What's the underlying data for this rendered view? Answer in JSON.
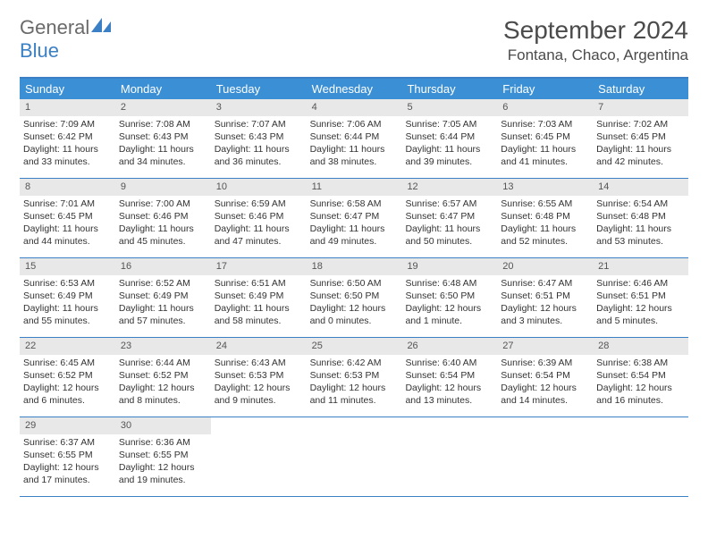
{
  "logo": {
    "textGray": "General",
    "textBlue": "Blue"
  },
  "title": "September 2024",
  "location": "Fontana, Chaco, Argentina",
  "colors": {
    "header_bar": "#3b8fd4",
    "rule": "#3b7fc4",
    "daynum_bg": "#e8e8e8",
    "text": "#333333",
    "logo_gray": "#6a6a6a",
    "logo_blue": "#3b7fc4"
  },
  "day_names": [
    "Sunday",
    "Monday",
    "Tuesday",
    "Wednesday",
    "Thursday",
    "Friday",
    "Saturday"
  ],
  "weeks": [
    [
      {
        "n": "1",
        "sr": "Sunrise: 7:09 AM",
        "ss": "Sunset: 6:42 PM",
        "dl1": "Daylight: 11 hours",
        "dl2": "and 33 minutes."
      },
      {
        "n": "2",
        "sr": "Sunrise: 7:08 AM",
        "ss": "Sunset: 6:43 PM",
        "dl1": "Daylight: 11 hours",
        "dl2": "and 34 minutes."
      },
      {
        "n": "3",
        "sr": "Sunrise: 7:07 AM",
        "ss": "Sunset: 6:43 PM",
        "dl1": "Daylight: 11 hours",
        "dl2": "and 36 minutes."
      },
      {
        "n": "4",
        "sr": "Sunrise: 7:06 AM",
        "ss": "Sunset: 6:44 PM",
        "dl1": "Daylight: 11 hours",
        "dl2": "and 38 minutes."
      },
      {
        "n": "5",
        "sr": "Sunrise: 7:05 AM",
        "ss": "Sunset: 6:44 PM",
        "dl1": "Daylight: 11 hours",
        "dl2": "and 39 minutes."
      },
      {
        "n": "6",
        "sr": "Sunrise: 7:03 AM",
        "ss": "Sunset: 6:45 PM",
        "dl1": "Daylight: 11 hours",
        "dl2": "and 41 minutes."
      },
      {
        "n": "7",
        "sr": "Sunrise: 7:02 AM",
        "ss": "Sunset: 6:45 PM",
        "dl1": "Daylight: 11 hours",
        "dl2": "and 42 minutes."
      }
    ],
    [
      {
        "n": "8",
        "sr": "Sunrise: 7:01 AM",
        "ss": "Sunset: 6:45 PM",
        "dl1": "Daylight: 11 hours",
        "dl2": "and 44 minutes."
      },
      {
        "n": "9",
        "sr": "Sunrise: 7:00 AM",
        "ss": "Sunset: 6:46 PM",
        "dl1": "Daylight: 11 hours",
        "dl2": "and 45 minutes."
      },
      {
        "n": "10",
        "sr": "Sunrise: 6:59 AM",
        "ss": "Sunset: 6:46 PM",
        "dl1": "Daylight: 11 hours",
        "dl2": "and 47 minutes."
      },
      {
        "n": "11",
        "sr": "Sunrise: 6:58 AM",
        "ss": "Sunset: 6:47 PM",
        "dl1": "Daylight: 11 hours",
        "dl2": "and 49 minutes."
      },
      {
        "n": "12",
        "sr": "Sunrise: 6:57 AM",
        "ss": "Sunset: 6:47 PM",
        "dl1": "Daylight: 11 hours",
        "dl2": "and 50 minutes."
      },
      {
        "n": "13",
        "sr": "Sunrise: 6:55 AM",
        "ss": "Sunset: 6:48 PM",
        "dl1": "Daylight: 11 hours",
        "dl2": "and 52 minutes."
      },
      {
        "n": "14",
        "sr": "Sunrise: 6:54 AM",
        "ss": "Sunset: 6:48 PM",
        "dl1": "Daylight: 11 hours",
        "dl2": "and 53 minutes."
      }
    ],
    [
      {
        "n": "15",
        "sr": "Sunrise: 6:53 AM",
        "ss": "Sunset: 6:49 PM",
        "dl1": "Daylight: 11 hours",
        "dl2": "and 55 minutes."
      },
      {
        "n": "16",
        "sr": "Sunrise: 6:52 AM",
        "ss": "Sunset: 6:49 PM",
        "dl1": "Daylight: 11 hours",
        "dl2": "and 57 minutes."
      },
      {
        "n": "17",
        "sr": "Sunrise: 6:51 AM",
        "ss": "Sunset: 6:49 PM",
        "dl1": "Daylight: 11 hours",
        "dl2": "and 58 minutes."
      },
      {
        "n": "18",
        "sr": "Sunrise: 6:50 AM",
        "ss": "Sunset: 6:50 PM",
        "dl1": "Daylight: 12 hours",
        "dl2": "and 0 minutes."
      },
      {
        "n": "19",
        "sr": "Sunrise: 6:48 AM",
        "ss": "Sunset: 6:50 PM",
        "dl1": "Daylight: 12 hours",
        "dl2": "and 1 minute."
      },
      {
        "n": "20",
        "sr": "Sunrise: 6:47 AM",
        "ss": "Sunset: 6:51 PM",
        "dl1": "Daylight: 12 hours",
        "dl2": "and 3 minutes."
      },
      {
        "n": "21",
        "sr": "Sunrise: 6:46 AM",
        "ss": "Sunset: 6:51 PM",
        "dl1": "Daylight: 12 hours",
        "dl2": "and 5 minutes."
      }
    ],
    [
      {
        "n": "22",
        "sr": "Sunrise: 6:45 AM",
        "ss": "Sunset: 6:52 PM",
        "dl1": "Daylight: 12 hours",
        "dl2": "and 6 minutes."
      },
      {
        "n": "23",
        "sr": "Sunrise: 6:44 AM",
        "ss": "Sunset: 6:52 PM",
        "dl1": "Daylight: 12 hours",
        "dl2": "and 8 minutes."
      },
      {
        "n": "24",
        "sr": "Sunrise: 6:43 AM",
        "ss": "Sunset: 6:53 PM",
        "dl1": "Daylight: 12 hours",
        "dl2": "and 9 minutes."
      },
      {
        "n": "25",
        "sr": "Sunrise: 6:42 AM",
        "ss": "Sunset: 6:53 PM",
        "dl1": "Daylight: 12 hours",
        "dl2": "and 11 minutes."
      },
      {
        "n": "26",
        "sr": "Sunrise: 6:40 AM",
        "ss": "Sunset: 6:54 PM",
        "dl1": "Daylight: 12 hours",
        "dl2": "and 13 minutes."
      },
      {
        "n": "27",
        "sr": "Sunrise: 6:39 AM",
        "ss": "Sunset: 6:54 PM",
        "dl1": "Daylight: 12 hours",
        "dl2": "and 14 minutes."
      },
      {
        "n": "28",
        "sr": "Sunrise: 6:38 AM",
        "ss": "Sunset: 6:54 PM",
        "dl1": "Daylight: 12 hours",
        "dl2": "and 16 minutes."
      }
    ],
    [
      {
        "n": "29",
        "sr": "Sunrise: 6:37 AM",
        "ss": "Sunset: 6:55 PM",
        "dl1": "Daylight: 12 hours",
        "dl2": "and 17 minutes."
      },
      {
        "n": "30",
        "sr": "Sunrise: 6:36 AM",
        "ss": "Sunset: 6:55 PM",
        "dl1": "Daylight: 12 hours",
        "dl2": "and 19 minutes."
      },
      {
        "empty": true
      },
      {
        "empty": true
      },
      {
        "empty": true
      },
      {
        "empty": true
      },
      {
        "empty": true
      }
    ]
  ]
}
